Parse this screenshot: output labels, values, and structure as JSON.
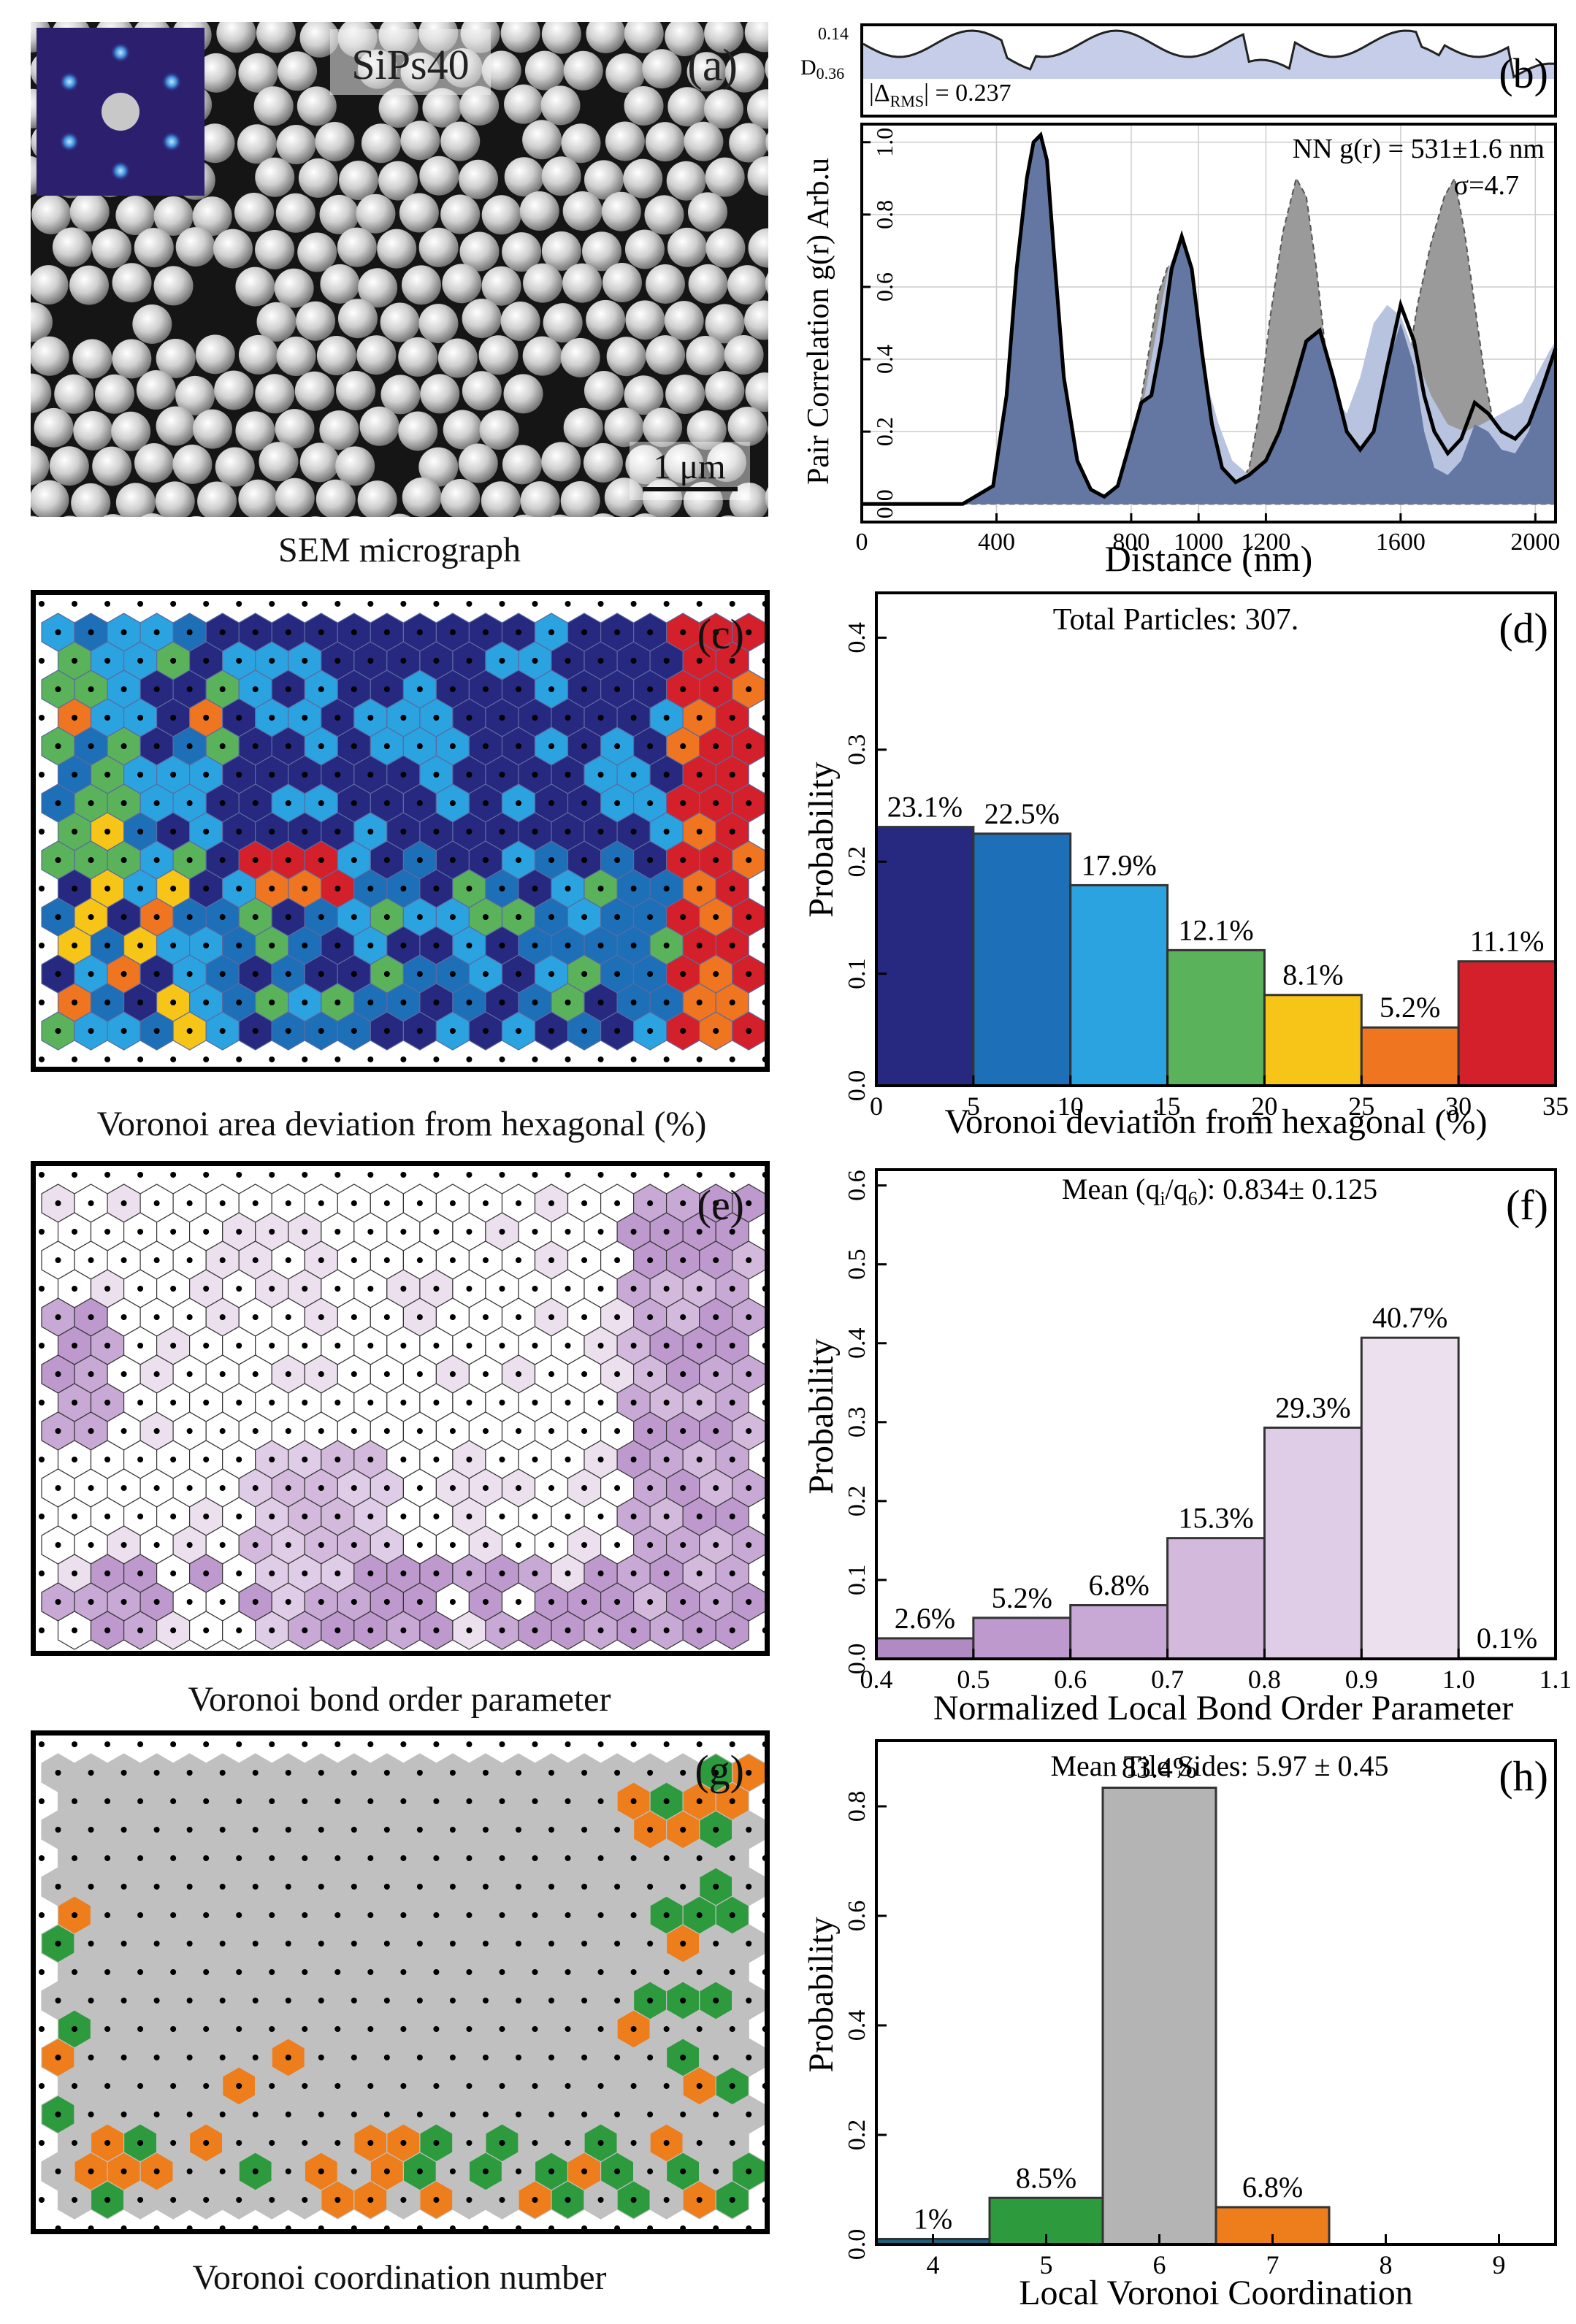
{
  "panel_a": {
    "label": "(a)",
    "sample": "SiPs40",
    "scalebar": "1 μm",
    "caption": "SEM micrograph"
  },
  "panel_b": {
    "label": "(b)",
    "delta_label": "|Δ",
    "delta_sub": "RMS",
    "delta_value": "| = 0.237",
    "d_label": "D",
    "d_sub": "0.36",
    "d_top": "0.14",
    "ylabel": "Pair Correlation  g(r) Arb.u",
    "xlabel": "Distance (nm)",
    "nn_text": "NN g(r) = 531±1.6 nm",
    "sigma_text": "σ=4.7"
  },
  "panel_c": {
    "label": "(c)",
    "caption": "Voronoi area deviation from hexagonal (%)"
  },
  "panel_d": {
    "label": "(d)",
    "title": "Total Particles: 307.",
    "xlabel": "Voronoi deviation from hexagonal (%)",
    "ylabel": "Probability"
  },
  "panel_e": {
    "label": "(e)",
    "caption": "Voronoi bond order parameter"
  },
  "panel_f": {
    "label": "(f)",
    "title_pre": "Mean (q",
    "title_sub1": "i",
    "title_mid": "/q",
    "title_sub2": "6",
    "title_post": "): 0.834± 0.125",
    "xlabel": "Normalized Local Bond Order Parameter",
    "ylabel": "Probability"
  },
  "panel_g": {
    "label": "(g)",
    "caption": "Voronoi coordination number"
  },
  "panel_h": {
    "label": "(h)",
    "title": "Mean Tile Sides: 5.97 ± 0.45",
    "xlabel": "Local Voronoi Coordination",
    "ylabel": "Probability"
  },
  "chart_data": [
    {
      "id": "b",
      "type": "area",
      "xlabel": "Distance (nm)",
      "ylabel": "Pair Correlation  g(r) Arb.u",
      "xlim": [
        0,
        2060
      ],
      "ylim": [
        -0.05,
        1.05
      ],
      "xticks": [
        0,
        400,
        800,
        1000,
        1200,
        1600,
        2000
      ],
      "yticks": [
        0.0,
        0.2,
        0.4,
        0.6,
        0.8,
        1.0
      ],
      "grid": true,
      "series": [
        {
          "color": "#9a9a9a",
          "x": [
            0,
            300,
            390,
            430,
            460,
            490,
            510,
            531,
            550,
            570,
            600,
            640,
            680,
            720,
            760,
            800,
            840,
            880,
            910,
            940,
            970,
            990,
            1010,
            1040,
            1080,
            1120,
            1150,
            1180,
            1210,
            1250,
            1290,
            1320,
            1350,
            1380,
            1410,
            1440,
            1470,
            1510,
            1550,
            1590,
            1620,
            1650,
            1690,
            1730,
            1760,
            1790,
            1820,
            1850,
            1880,
            1910,
            1940,
            1970,
            2000,
            2030,
            2060
          ],
          "y": [
            0,
            0,
            0.05,
            0.3,
            0.65,
            0.9,
            1.0,
            1.02,
            0.95,
            0.7,
            0.35,
            0.1,
            0.02,
            0.0,
            0.02,
            0.12,
            0.35,
            0.58,
            0.66,
            0.62,
            0.45,
            0.3,
            0.2,
            0.1,
            0.05,
            0.05,
            0.1,
            0.25,
            0.5,
            0.75,
            0.9,
            0.85,
            0.65,
            0.4,
            0.2,
            0.08,
            0.05,
            0.05,
            0.08,
            0.2,
            0.38,
            0.55,
            0.72,
            0.85,
            0.9,
            0.75,
            0.55,
            0.35,
            0.2,
            0.1,
            0.05,
            0.05,
            0.05,
            0.05,
            0.05
          ]
        },
        {
          "color": "#b7c3df",
          "x": [
            0,
            300,
            390,
            430,
            460,
            490,
            510,
            531,
            550,
            570,
            600,
            640,
            680,
            720,
            760,
            800,
            840,
            880,
            910,
            940,
            960,
            980,
            1000,
            1020,
            1060,
            1100,
            1150,
            1200,
            1250,
            1290,
            1320,
            1360,
            1400,
            1440,
            1480,
            1520,
            1560,
            1600,
            1640,
            1690,
            1740,
            1790,
            1840,
            1900,
            1960,
            2000,
            2040,
            2060
          ],
          "y": [
            0,
            0,
            0.05,
            0.3,
            0.65,
            0.9,
            1.0,
            1.02,
            0.95,
            0.7,
            0.35,
            0.1,
            0.02,
            0.0,
            0.02,
            0.12,
            0.3,
            0.5,
            0.65,
            0.72,
            0.7,
            0.6,
            0.48,
            0.35,
            0.22,
            0.12,
            0.08,
            0.1,
            0.2,
            0.35,
            0.45,
            0.4,
            0.3,
            0.25,
            0.35,
            0.5,
            0.55,
            0.52,
            0.42,
            0.3,
            0.22,
            0.2,
            0.22,
            0.25,
            0.28,
            0.35,
            0.42,
            0.45
          ]
        },
        {
          "color": "#6377a2",
          "x": [
            0,
            300,
            390,
            430,
            460,
            490,
            510,
            531,
            550,
            570,
            600,
            640,
            680,
            720,
            760,
            800,
            830,
            860,
            890,
            920,
            950,
            980,
            1010,
            1040,
            1070,
            1110,
            1150,
            1200,
            1240,
            1280,
            1320,
            1360,
            1400,
            1440,
            1480,
            1520,
            1560,
            1600,
            1640,
            1670,
            1700,
            1740,
            1780,
            1820,
            1860,
            1900,
            1940,
            1980,
            2020,
            2060
          ],
          "y": [
            0,
            0,
            0.05,
            0.3,
            0.65,
            0.9,
            1.0,
            1.02,
            0.95,
            0.7,
            0.35,
            0.12,
            0.04,
            0.02,
            0.05,
            0.18,
            0.28,
            0.3,
            0.45,
            0.65,
            0.74,
            0.65,
            0.42,
            0.22,
            0.1,
            0.06,
            0.08,
            0.12,
            0.2,
            0.32,
            0.45,
            0.48,
            0.35,
            0.2,
            0.15,
            0.2,
            0.38,
            0.5,
            0.38,
            0.2,
            0.1,
            0.08,
            0.12,
            0.22,
            0.2,
            0.15,
            0.14,
            0.2,
            0.32,
            0.43
          ]
        },
        {
          "color": "#000000",
          "x": [
            0,
            300,
            390,
            430,
            460,
            490,
            510,
            531,
            550,
            570,
            600,
            640,
            680,
            720,
            760,
            800,
            830,
            860,
            890,
            920,
            950,
            980,
            1010,
            1040,
            1070,
            1110,
            1150,
            1200,
            1240,
            1280,
            1320,
            1360,
            1400,
            1440,
            1480,
            1520,
            1560,
            1600,
            1640,
            1670,
            1700,
            1740,
            1780,
            1820,
            1860,
            1900,
            1940,
            1980,
            2020,
            2060
          ],
          "y": [
            0,
            0,
            0.05,
            0.3,
            0.65,
            0.9,
            1.0,
            1.02,
            0.95,
            0.7,
            0.35,
            0.12,
            0.04,
            0.02,
            0.05,
            0.18,
            0.28,
            0.3,
            0.45,
            0.65,
            0.74,
            0.65,
            0.42,
            0.22,
            0.1,
            0.06,
            0.08,
            0.12,
            0.2,
            0.32,
            0.45,
            0.48,
            0.35,
            0.2,
            0.15,
            0.2,
            0.38,
            0.55,
            0.45,
            0.3,
            0.2,
            0.14,
            0.18,
            0.28,
            0.25,
            0.2,
            0.18,
            0.22,
            0.32,
            0.43
          ]
        }
      ]
    },
    {
      "id": "d",
      "type": "bar",
      "title": "Total Particles: 307.",
      "xlabel": "Voronoi deviation from hexagonal (%)",
      "ylabel": "Probability",
      "xlim": [
        0,
        35
      ],
      "ylim": [
        0,
        0.44
      ],
      "xticks": [
        0,
        5,
        10,
        15,
        20,
        25,
        30,
        35
      ],
      "yticks": [
        0.0,
        0.1,
        0.2,
        0.3,
        0.4
      ],
      "bins": [
        [
          0,
          5
        ],
        [
          5,
          10
        ],
        [
          10,
          15
        ],
        [
          15,
          20
        ],
        [
          20,
          25
        ],
        [
          25,
          30
        ],
        [
          30,
          35
        ]
      ],
      "values": [
        0.231,
        0.225,
        0.179,
        0.121,
        0.081,
        0.052,
        0.111
      ],
      "labels": [
        "23.1%",
        "22.5%",
        "17.9%",
        "12.1%",
        "8.1%",
        "5.2%",
        "11.1%"
      ],
      "colors": [
        "#26297f",
        "#1d6fb8",
        "#2aa3e0",
        "#5ab25a",
        "#f7c517",
        "#ef7521",
        "#d4202a"
      ]
    },
    {
      "id": "f",
      "type": "bar",
      "xlabel": "Normalized Local Bond Order Parameter",
      "ylabel": "Probability",
      "xlim": [
        0.4,
        1.1
      ],
      "ylim": [
        0,
        0.62
      ],
      "xticks": [
        0.4,
        0.5,
        0.6,
        0.7,
        0.8,
        0.9,
        1.0,
        1.1
      ],
      "yticks": [
        0.0,
        0.1,
        0.2,
        0.3,
        0.4,
        0.5,
        0.6
      ],
      "bins": [
        [
          0.4,
          0.5
        ],
        [
          0.5,
          0.6
        ],
        [
          0.6,
          0.7
        ],
        [
          0.7,
          0.8
        ],
        [
          0.8,
          0.9
        ],
        [
          0.9,
          1.0
        ],
        [
          1.0,
          1.1
        ]
      ],
      "values": [
        0.026,
        0.052,
        0.068,
        0.153,
        0.293,
        0.407,
        0.001
      ],
      "labels": [
        "2.6%",
        "5.2%",
        "6.8%",
        "15.3%",
        "29.3%",
        "40.7%",
        "0.1%"
      ],
      "colors": [
        "#b189c3",
        "#bd99cd",
        "#c8a9d5",
        "#d3badd",
        "#dfcce6",
        "#ece0ef",
        "#f7f1f9"
      ]
    },
    {
      "id": "h",
      "type": "bar",
      "title": "Mean Tile Sides: 5.97 ± 0.45",
      "xlabel": "Local Voronoi Coordination",
      "ylabel": "Probability",
      "xlim": [
        3.5,
        9.5
      ],
      "ylim": [
        0,
        0.92
      ],
      "xticks": [
        4,
        5,
        6,
        7,
        8,
        9
      ],
      "yticks": [
        0.0,
        0.2,
        0.4,
        0.6,
        0.8
      ],
      "categories": [
        4,
        5,
        6,
        7
      ],
      "values": [
        0.01,
        0.085,
        0.834,
        0.068
      ],
      "labels": [
        "1%",
        "8.5%",
        "83.4%",
        "6.8%"
      ],
      "colors": [
        "#1d5f7a",
        "#2e9a3e",
        "#b4b4b4",
        "#ee7d1c"
      ]
    }
  ]
}
